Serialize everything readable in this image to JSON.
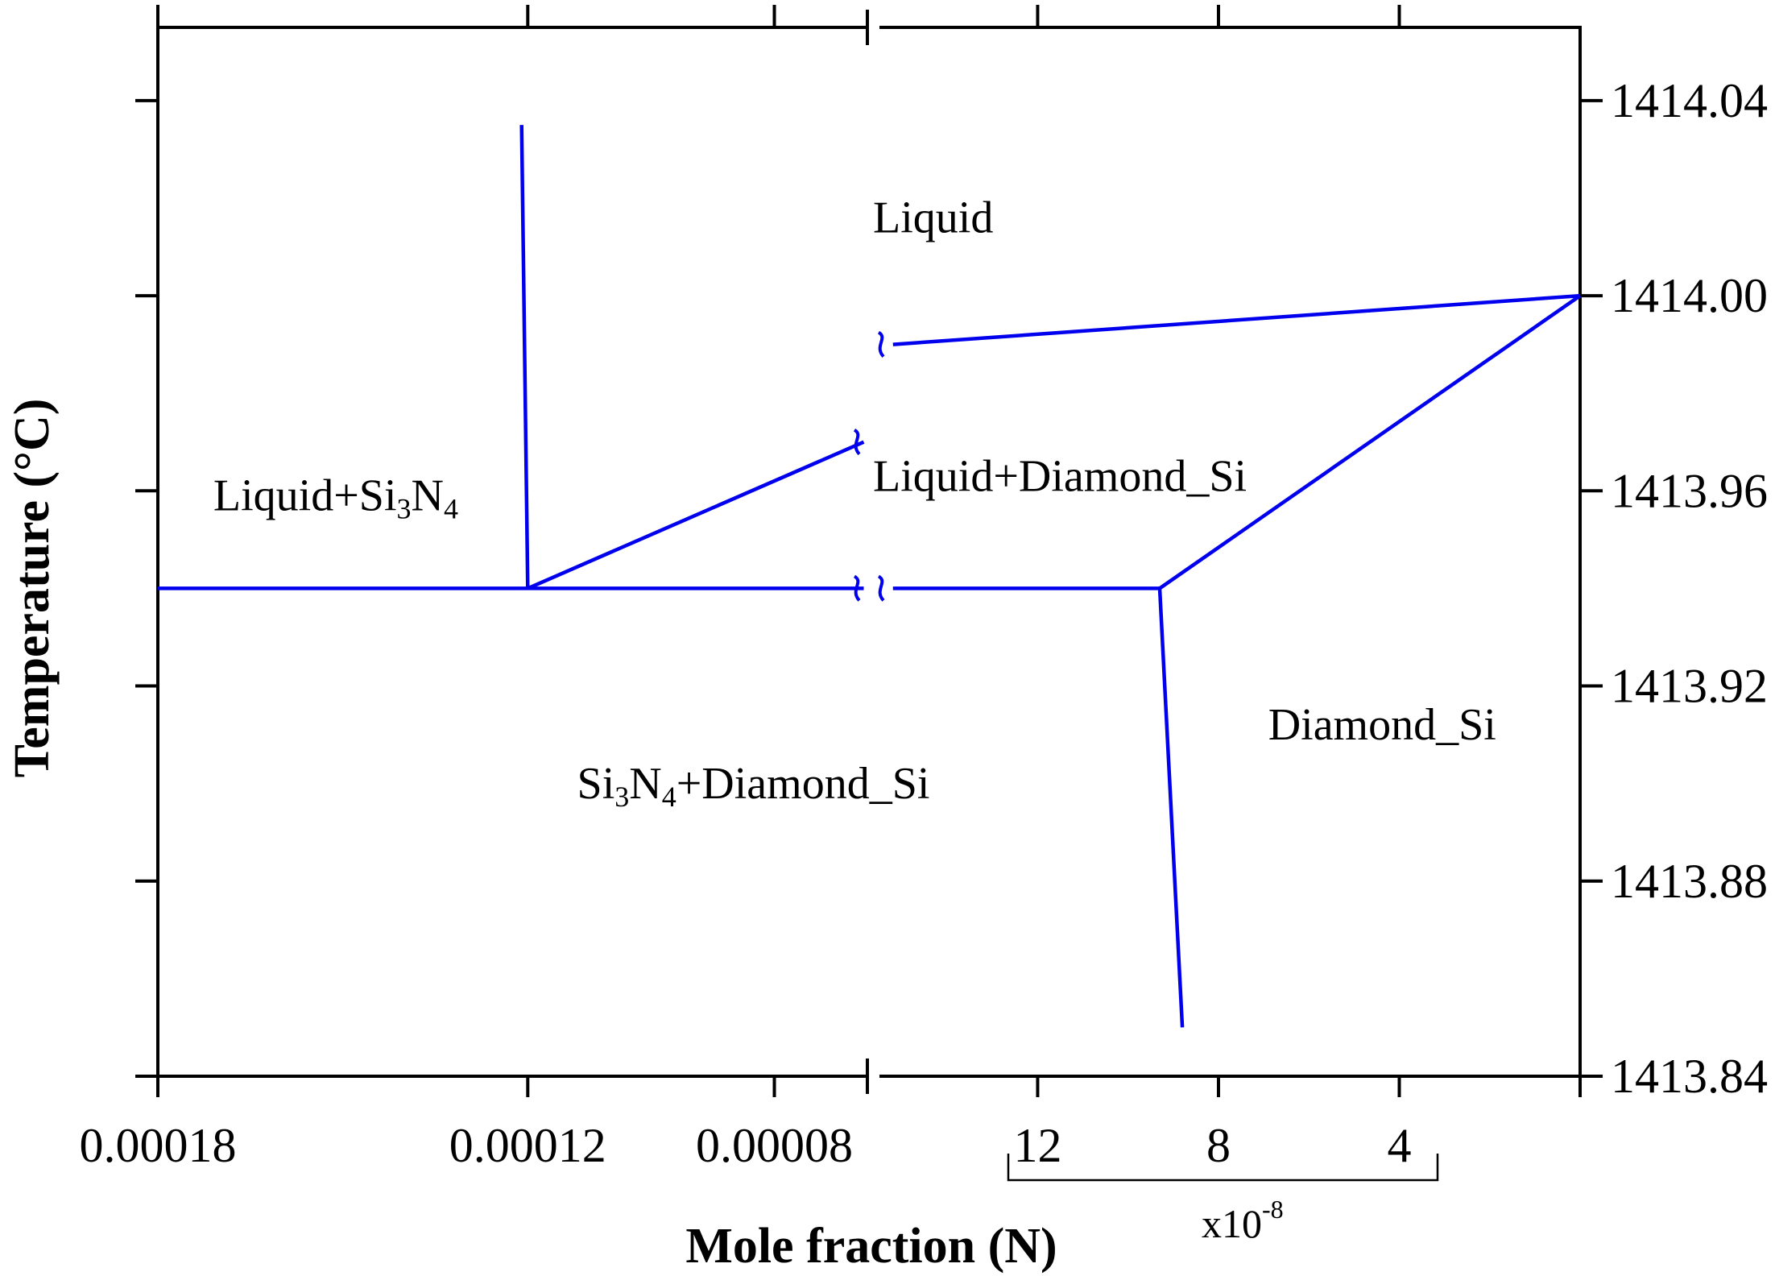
{
  "chart_data": {
    "type": "line",
    "xlabel": "Mole fraction (N)",
    "ylabel": "Temperature (°C)",
    "x_axis_break": true,
    "x_axis_reversed": true,
    "left_segment": {
      "x_range": [
        0.00018,
        6.4e-05
      ],
      "ticks": [
        0.00018,
        0.00012,
        8e-05
      ],
      "tick_labels": [
        "0.00018",
        "0.00012",
        "0.00008"
      ]
    },
    "right_segment": {
      "x_range": [
        1.55e-07,
        0
      ],
      "ticks": [
        1.2e-07,
        8e-08,
        4e-08
      ],
      "tick_labels": [
        "12",
        "8",
        "4"
      ],
      "multiplier": "x10",
      "multiplier_exp": "-8"
    },
    "ylim": [
      1413.84,
      1414.055
    ],
    "yticks": [
      1413.84,
      1413.88,
      1413.92,
      1413.96,
      1414.0,
      1414.04
    ],
    "ytick_labels": [
      "1413.84",
      "1413.88",
      "1413.92",
      "1413.96",
      "1414.00",
      "1414.04"
    ],
    "y_axis_side": "right",
    "line_color": "#0000ee",
    "series": [
      {
        "segment": "left",
        "x": [
          0.00012,
          0.000121
        ],
        "y": [
          1413.94,
          1414.035
        ]
      },
      {
        "segment": "left",
        "x": [
          0.00012,
          6.55e-05
        ],
        "y": [
          1413.94,
          1413.97
        ]
      },
      {
        "segment": "left",
        "x": [
          0.00018,
          6.55e-05
        ],
        "y": [
          1413.94,
          1413.94
        ]
      },
      {
        "segment": "right",
        "x": [
          1.52e-07,
          0
        ],
        "y": [
          1413.99,
          1414.0
        ]
      },
      {
        "segment": "right",
        "x": [
          9.3e-08,
          0
        ],
        "y": [
          1413.94,
          1414.0
        ]
      },
      {
        "segment": "right",
        "x": [
          1.52e-07,
          9.3e-08
        ],
        "y": [
          1413.94,
          1413.94
        ]
      },
      {
        "segment": "right",
        "x": [
          9.3e-08,
          8.8e-08
        ],
        "y": [
          1413.94,
          1413.85
        ]
      }
    ],
    "annotations": [
      {
        "segment": "left",
        "x": 6.4e-05,
        "y": 1414.013,
        "parts": [
          {
            "t": "Liquid"
          }
        ]
      },
      {
        "segment": "left",
        "x": 0.000171,
        "y": 1413.956,
        "parts": [
          {
            "t": "Liquid+Si"
          },
          {
            "t": "3",
            "sub": true
          },
          {
            "t": "N"
          },
          {
            "t": "4",
            "sub": true
          }
        ]
      },
      {
        "segment": "left",
        "x": 0.000112,
        "y": 1413.897,
        "parts": [
          {
            "t": "Si"
          },
          {
            "t": "3",
            "sub": true
          },
          {
            "t": "N"
          },
          {
            "t": "4",
            "sub": true
          },
          {
            "t": "+Diamond_Si"
          }
        ]
      },
      {
        "segment": "left",
        "x": 6.4e-05,
        "y": 1413.96,
        "parts": [
          {
            "t": "Liquid+Diamond_Si"
          }
        ]
      },
      {
        "segment": "right",
        "x": 6.9e-08,
        "y": 1413.909,
        "parts": [
          {
            "t": "Diamond_Si"
          }
        ]
      }
    ]
  }
}
